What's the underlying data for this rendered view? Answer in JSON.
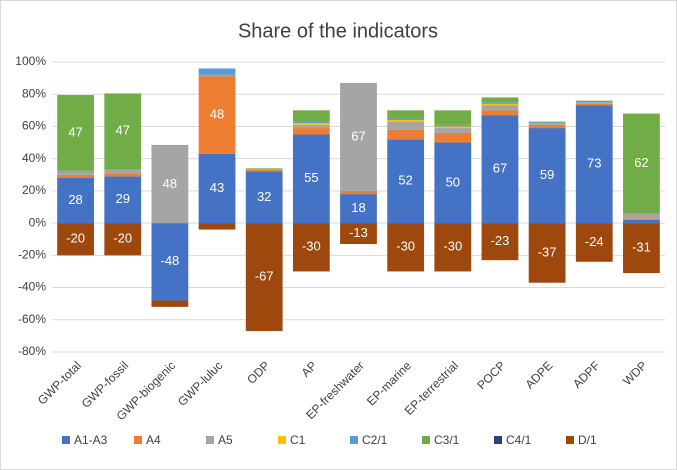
{
  "chart_data": {
    "type": "stacked_bar",
    "title": "Share of the indicators",
    "categories": [
      "GWP-total",
      "GWP-fossil",
      "GWP-biogenic",
      "GWP-luluc",
      "ODP",
      "AP",
      "EP-freshwater",
      "EP-marine",
      "EP-terrestrial",
      "POCP",
      "ADPE",
      "ADPF",
      "WDP"
    ],
    "series": [
      {
        "name": "A1-A3",
        "color": "#4472c4",
        "values": [
          28,
          29,
          -48,
          43,
          32,
          55,
          18,
          52,
          50,
          67,
          59,
          73,
          2
        ]
      },
      {
        "name": "A4",
        "color": "#ed7d31",
        "values": [
          2,
          2,
          0,
          48,
          1,
          4,
          2,
          6,
          6,
          3,
          2,
          1,
          1
        ]
      },
      {
        "name": "A5",
        "color": "#a5a5a5",
        "values": [
          2,
          2,
          48,
          1,
          0.5,
          2,
          67,
          5,
          3,
          3,
          1,
          1,
          3
        ]
      },
      {
        "name": "C1",
        "color": "#ffc000",
        "values": [
          0,
          0,
          0,
          0,
          0,
          1,
          0,
          1,
          1,
          1,
          0,
          0,
          0
        ]
      },
      {
        "name": "C2/1",
        "color": "#5b9bd5",
        "values": [
          0.5,
          0.5,
          0,
          4,
          0,
          1,
          0,
          1,
          1,
          1,
          0.5,
          0.5,
          0
        ]
      },
      {
        "name": "C3/1",
        "color": "#70ad47",
        "values": [
          47,
          47,
          0.5,
          0,
          0.5,
          7,
          0,
          5,
          9,
          3,
          0.5,
          0.5,
          62
        ]
      },
      {
        "name": "C4/1",
        "color": "#264478",
        "values": [
          0,
          0,
          0,
          0,
          0,
          0,
          0,
          0,
          0,
          0,
          0,
          0,
          0
        ]
      },
      {
        "name": "D/1",
        "color": "#9e480e",
        "values": [
          -20,
          -20,
          -4,
          -4,
          -67,
          -30,
          -13,
          -30,
          -30,
          -23,
          -37,
          -24,
          -31
        ]
      }
    ],
    "ylim": [
      -80,
      100
    ],
    "yticks": [
      {
        "value": -80,
        "label": "-80%"
      },
      {
        "value": -60,
        "label": "-60%"
      },
      {
        "value": -40,
        "label": "-40%"
      },
      {
        "value": -20,
        "label": "-20%"
      },
      {
        "value": 0,
        "label": "0%"
      },
      {
        "value": 20,
        "label": "20%"
      },
      {
        "value": 40,
        "label": "40%"
      },
      {
        "value": 60,
        "label": "60%"
      },
      {
        "value": 80,
        "label": "80%"
      },
      {
        "value": 100,
        "label": "100%"
      }
    ],
    "grid": true,
    "legend": "bottom"
  }
}
